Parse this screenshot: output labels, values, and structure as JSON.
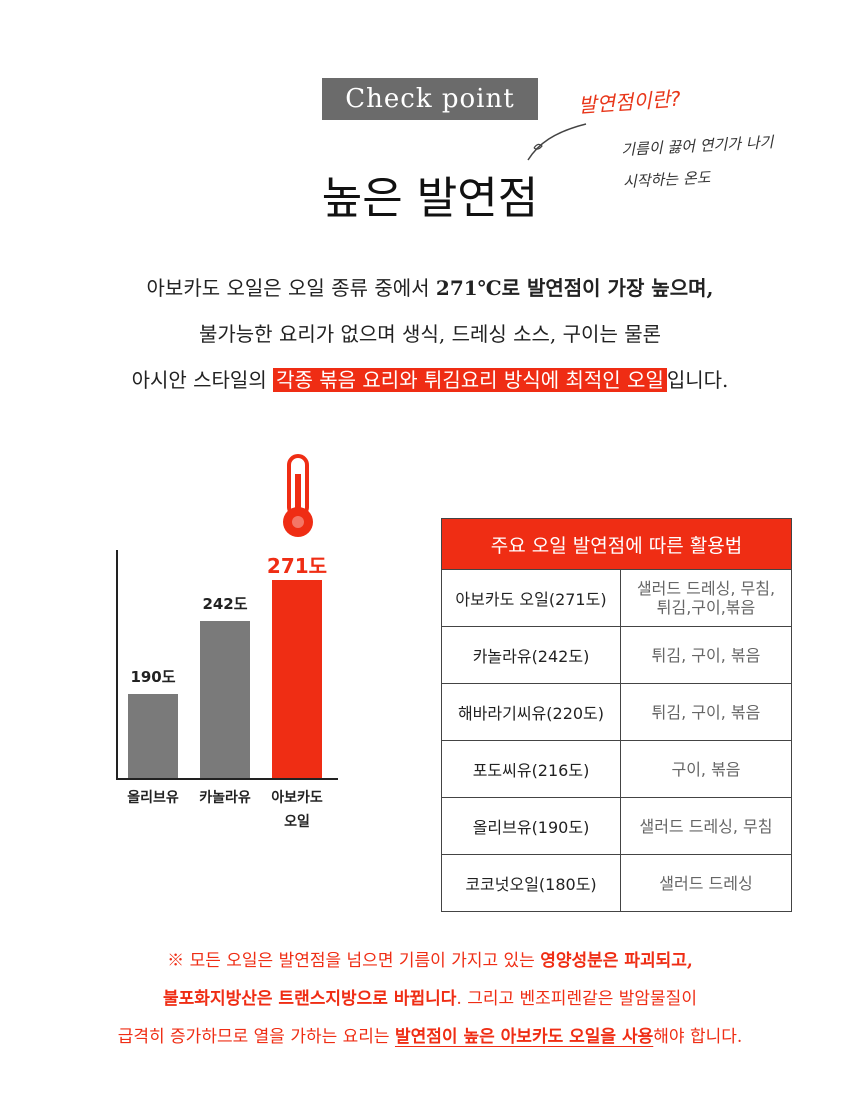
{
  "header": {
    "badge": "Check point",
    "note_title": "발연점이란?",
    "note_line1": "기름이 끓어 연기가 나기",
    "note_line2": "시작하는 온도",
    "title": "높은 발연점"
  },
  "intro": {
    "line1_a": "아보카도 오일은 오일 종류 중에서 ",
    "line1_b": "271℃로 발연점이 가장 높으며,",
    "line2": "불가능한 요리가 없으며 생식, 드레싱 소스, 구이는 물론",
    "line3_a": "아시안 스타일의 ",
    "line3_highlight": "각종 볶음 요리와 튀김요리 방식에 최적인 오일",
    "line3_b": "입니다."
  },
  "colors": {
    "accent": "#ef2d14",
    "bar_gray": "#7a7a7a"
  },
  "chart_data": {
    "type": "bar",
    "categories": [
      "올리브유",
      "카놀라유",
      "아보카도 오일"
    ],
    "category_lines": [
      [
        "올리브유"
      ],
      [
        "카놀라유"
      ],
      [
        "아보카도",
        "오일"
      ]
    ],
    "values": [
      190,
      242,
      271
    ],
    "data_labels": [
      "190도",
      "242도",
      "271도"
    ],
    "highlight_index": 2,
    "ylim": [
      0,
      300
    ],
    "title": "",
    "xlabel": "",
    "ylabel": ""
  },
  "table": {
    "header": "주요 오일 발연점에 따른 활용법",
    "rows": [
      {
        "oil": "아보카도 오일(271도)",
        "use1": "샐러드 드레싱, 무침,",
        "use2": "튀김,구이,볶음"
      },
      {
        "oil": "카놀라유(242도)",
        "use1": "튀김, 구이, 볶음",
        "use2": ""
      },
      {
        "oil": "해바라기씨유(220도)",
        "use1": "튀김, 구이, 볶음",
        "use2": ""
      },
      {
        "oil": "포도씨유(216도)",
        "use1": "구이, 볶음",
        "use2": ""
      },
      {
        "oil": "올리브유(190도)",
        "use1": "샐러드 드레싱, 무침",
        "use2": ""
      },
      {
        "oil": "코코넛오일(180도)",
        "use1": "샐러드 드레싱",
        "use2": ""
      }
    ]
  },
  "footer": {
    "l1_a": "※ 모든 오일은 발연점을 넘으면 기름이 가지고 있는 ",
    "l1_b": "영양성분은 파괴되고,",
    "l2_a": "불포화지방산은 트랜스지방으로 바뀝니다",
    "l2_b": ". 그리고 벤조피렌같은 발암물질이",
    "l3_a": "급격히 증가하므로 열을 가하는 요리는 ",
    "l3_b": "발연점이 높은 아보카도 오일을 사용",
    "l3_c": "해야 합니다."
  }
}
